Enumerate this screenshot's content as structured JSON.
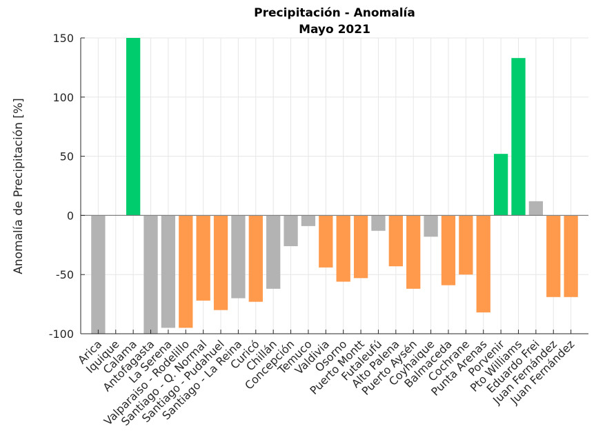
{
  "chart_data": {
    "type": "bar",
    "title": "Precipitación - Anomalía",
    "subtitle": "Mayo 2021",
    "xlabel": "",
    "ylabel": "Anomalía de Precipitación [%]",
    "ylim": [
      -100,
      150
    ],
    "yticks": [
      -100,
      -50,
      0,
      50,
      100,
      150
    ],
    "grid": true,
    "categories": [
      "Arica",
      "Iquique",
      "Calama",
      "Antofagasta",
      "La Serena",
      "Valparaiso - Rodelillo",
      "Santiago - Q. Normal",
      "Santiago - Pudahuel",
      "Santiago - La Reina",
      "Curicó",
      "Chillán",
      "Concepción",
      "Temuco",
      "Valdivia",
      "Osorno",
      "Puerto Montt",
      "Futaleufú",
      "Alto Palena",
      "Puerto Aysén",
      "Coyhaique",
      "Balmaceda",
      "Cochrane",
      "Punta Arenas",
      "Porvenir",
      "Pto Williams",
      "Eduardo Frei",
      "Juan Fernández",
      "Juan Fernández"
    ],
    "values": [
      -100,
      0,
      150,
      -100,
      -95,
      -95,
      -72,
      -80,
      -70,
      -73,
      -62,
      -26,
      -9,
      -44,
      -56,
      -53,
      -13,
      -43,
      -62,
      -18,
      -59,
      -50,
      -82,
      52,
      133,
      12,
      -69,
      -69
    ],
    "colors": {
      "gray": "#b3b3b3",
      "orange": "#ff9a4d",
      "green": "#00cc6e"
    },
    "bar_colors": [
      "gray",
      "gray",
      "green",
      "gray",
      "gray",
      "orange",
      "orange",
      "orange",
      "gray",
      "orange",
      "gray",
      "gray",
      "gray",
      "orange",
      "orange",
      "orange",
      "gray",
      "orange",
      "orange",
      "gray",
      "orange",
      "orange",
      "orange",
      "green",
      "green",
      "gray",
      "orange",
      "orange"
    ]
  }
}
